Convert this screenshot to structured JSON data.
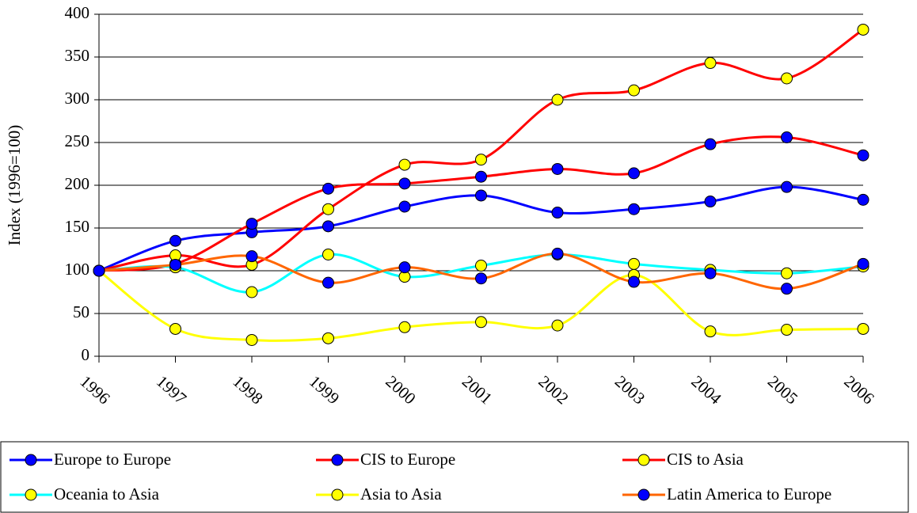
{
  "chart_data": {
    "type": "line",
    "y_label": "Index (1996=100)",
    "categories": [
      "1996",
      "1997",
      "1998",
      "1999",
      "2000",
      "2001",
      "2002",
      "2003",
      "2004",
      "2005",
      "2006"
    ],
    "series": [
      {
        "name": "Europe to Europe",
        "color": "#0000ff",
        "marker_color": "#0000ff",
        "values": [
          100,
          135,
          145,
          152,
          175,
          188,
          168,
          172,
          181,
          198,
          183
        ]
      },
      {
        "name": "CIS to Europe",
        "color": "#ff0000",
        "marker_color": "#0000ff",
        "values": [
          100,
          108,
          155,
          196,
          202,
          210,
          219,
          214,
          248,
          256,
          235
        ]
      },
      {
        "name": "CIS to Asia",
        "color": "#ff0000",
        "marker_color": "#ffff00",
        "values": [
          100,
          118,
          107,
          172,
          224,
          230,
          300,
          311,
          343,
          325,
          382
        ]
      },
      {
        "name": "Oceania to Asia",
        "color": "#00ffff",
        "marker_color": "#ffff00",
        "values": [
          100,
          104,
          75,
          119,
          93,
          106,
          119,
          108,
          101,
          97,
          105
        ]
      },
      {
        "name": "Asia to Asia",
        "color": "#ffff00",
        "marker_color": "#ffff00",
        "values": [
          100,
          32,
          19,
          21,
          34,
          40,
          36,
          95,
          29,
          31,
          32
        ]
      },
      {
        "name": "Latin America to Europe",
        "color": "#ff6600",
        "marker_color": "#0000ff",
        "values": [
          100,
          107,
          117,
          86,
          104,
          91,
          120,
          87,
          97,
          79,
          108
        ]
      }
    ],
    "ylim": [
      0,
      400
    ],
    "yticks": [
      0,
      50,
      100,
      150,
      200,
      250,
      300,
      350,
      400
    ],
    "grid": true,
    "legend": "bottom"
  }
}
